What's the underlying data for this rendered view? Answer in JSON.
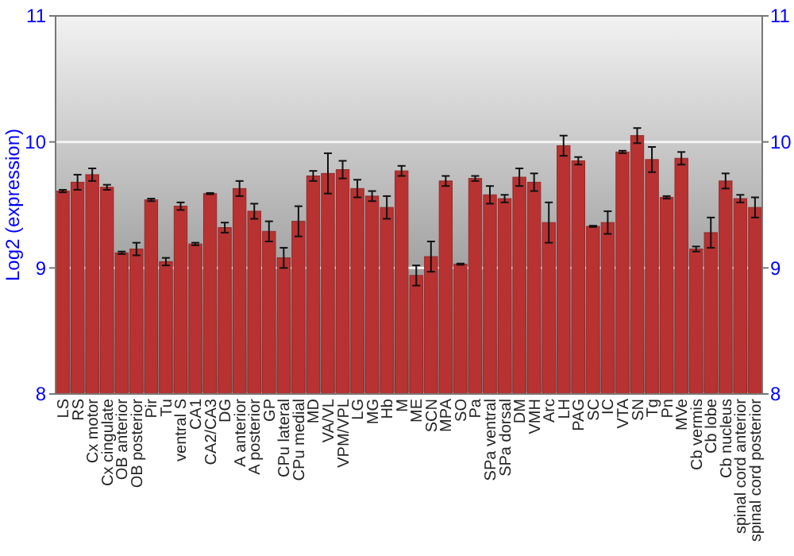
{
  "chart_data": {
    "type": "bar",
    "ylabel": "Log2 (expression)",
    "categories": [
      "LS",
      "RS",
      "Cx motor",
      "Cx cingulate",
      "OB anterior",
      "OB posterior",
      "Pir",
      "Tu",
      "ventral S",
      "CA1",
      "CA2/CA3",
      "DG",
      "A anterior",
      "A posterior",
      "GP",
      "CPu lateral",
      "CPu medial",
      "MD",
      "VA/VL",
      "VPM/VPL",
      "LG",
      "MG",
      "Hb",
      "M",
      "ME",
      "SCN",
      "MPA",
      "SO",
      "Pa",
      "SPa ventral",
      "SPa dorsal",
      "DM",
      "VMH",
      "Arc",
      "LH",
      "PAG",
      "SC",
      "IC",
      "VTA",
      "SN",
      "Tg",
      "Pn",
      "MVe",
      "Cb vermis",
      "Cb lobe",
      "Cb nucleus",
      "spinal cord anterior",
      "spinal cord posterior"
    ],
    "values": [
      9.61,
      9.68,
      9.74,
      9.64,
      9.12,
      9.15,
      9.54,
      9.05,
      9.49,
      9.19,
      9.59,
      9.32,
      9.63,
      9.45,
      9.29,
      9.08,
      9.37,
      9.73,
      9.75,
      9.78,
      9.63,
      9.57,
      9.48,
      9.77,
      8.94,
      9.09,
      9.69,
      9.03,
      9.71,
      9.58,
      9.55,
      9.72,
      9.68,
      9.36,
      9.97,
      9.85,
      9.33,
      9.36,
      9.92,
      10.05,
      9.86,
      9.56,
      9.87,
      9.15,
      9.28,
      9.69,
      9.55,
      9.48
    ],
    "errors": [
      0.01,
      0.06,
      0.05,
      0.02,
      0.01,
      0.05,
      0.01,
      0.03,
      0.03,
      0.01,
      0.005,
      0.04,
      0.06,
      0.06,
      0.08,
      0.08,
      0.12,
      0.04,
      0.16,
      0.07,
      0.07,
      0.04,
      0.09,
      0.04,
      0.08,
      0.12,
      0.04,
      0.005,
      0.02,
      0.07,
      0.03,
      0.07,
      0.07,
      0.16,
      0.08,
      0.03,
      0.005,
      0.09,
      0.01,
      0.06,
      0.1,
      0.01,
      0.05,
      0.02,
      0.12,
      0.06,
      0.03,
      0.08
    ],
    "color": "#b83232",
    "ylim": [
      8,
      11
    ],
    "yticks": [
      8,
      9,
      10,
      11
    ],
    "y2lim": [
      8,
      11
    ],
    "y2ticks": [
      8,
      9,
      10,
      11
    ],
    "grid": "y"
  }
}
